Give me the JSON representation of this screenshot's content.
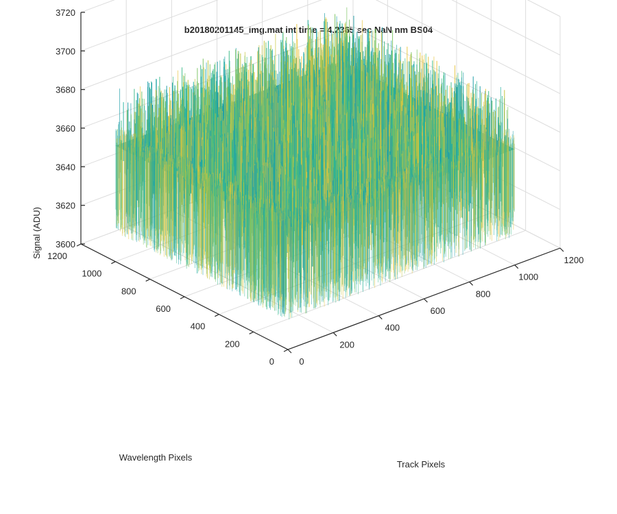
{
  "chart_data": {
    "type": "surface",
    "title": "b20180201145_img.mat int time = 4.2365 sec  NaN nm BS04",
    "xlabel": "Track Pixels",
    "ylabel": "Wavelength Pixels",
    "zlabel": "Signal (ADU)",
    "xlim": [
      0,
      1200
    ],
    "ylim": [
      0,
      1200
    ],
    "zlim": [
      3600,
      3720
    ],
    "x_ticks": [
      "0",
      "200",
      "400",
      "600",
      "800",
      "1000",
      "1200"
    ],
    "y_ticks": [
      "0",
      "200",
      "400",
      "600",
      "800",
      "1000",
      "1200"
    ],
    "z_ticks": [
      "3600",
      "3620",
      "3640",
      "3660",
      "3680",
      "3700",
      "3720"
    ],
    "surface_extent": {
      "x": [
        0,
        1000
      ],
      "y": [
        0,
        1000
      ]
    },
    "surface_mean": 3660,
    "surface_noise_range": [
      3630,
      3690
    ],
    "colormap": [
      "#1f9ea8",
      "#25b0a0",
      "#3aba88",
      "#7cc462",
      "#c4c43a",
      "#e8c640"
    ],
    "grid": true
  }
}
